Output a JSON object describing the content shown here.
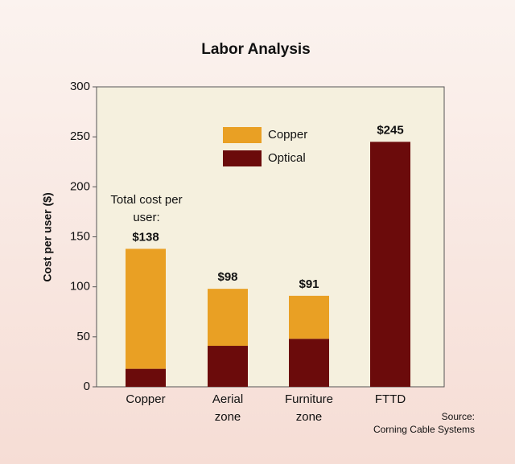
{
  "chart_data": {
    "type": "stacked-bar",
    "title": "Labor Analysis",
    "y_label": "Cost per user ($)",
    "categories": [
      "Copper",
      "Aerial zone",
      "Furniture zone",
      "FTTD"
    ],
    "series": [
      {
        "name": "Optical",
        "color": "#6b0b0b",
        "values": [
          18,
          41,
          48,
          245
        ]
      },
      {
        "name": "Copper",
        "color": "#e9a024",
        "values": [
          120,
          57,
          43,
          0
        ]
      }
    ],
    "legend_order": [
      "Copper",
      "Optical"
    ],
    "totals": {
      "values": [
        138,
        98,
        91,
        245
      ],
      "value_labels": [
        "$138",
        "$98",
        "$91",
        "$245"
      ]
    },
    "annotation": "Total cost per user:",
    "source": [
      "Source:",
      "Corning Cable Systems"
    ],
    "ylim": [
      0,
      300
    ],
    "yticks": [
      0,
      50,
      100,
      150,
      200,
      250,
      300
    ]
  }
}
